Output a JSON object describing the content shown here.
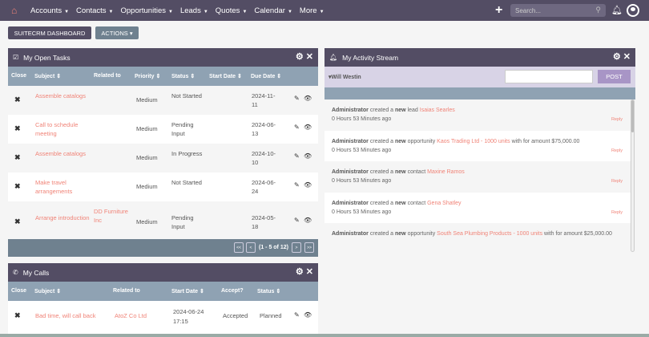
{
  "nav": {
    "items": [
      "Accounts",
      "Contacts",
      "Opportunities",
      "Leads",
      "Quotes",
      "Calendar",
      "More"
    ],
    "search_placeholder": "Search..."
  },
  "buttons": {
    "dashboard": "SUITECRM DASHBOARD",
    "actions": "ACTIONS ▾"
  },
  "tasks": {
    "title": "My Open Tasks",
    "columns": [
      "Close",
      "Subject ⇕",
      "Related to",
      "Priority ⇕",
      "Status ⇕",
      "Start Date ⇕",
      "Due Date ⇕"
    ],
    "rows": [
      {
        "subject": "Assemble catalogs",
        "related": "",
        "priority": "Medium",
        "status": "Not Started",
        "due": "2024-11-11"
      },
      {
        "subject": "Call to schedule meeting",
        "related": "",
        "priority": "Medium",
        "status": "Pending Input",
        "due": "2024-06-13"
      },
      {
        "subject": "Assemble catalogs",
        "related": "",
        "priority": "Medium",
        "status": "In Progress",
        "due": "2024-10-10"
      },
      {
        "subject": "Make travel arrangements",
        "related": "",
        "priority": "Medium",
        "status": "Not Started",
        "due": "2024-06-24"
      },
      {
        "subject": "Arrange introduction",
        "related": "DD Furniture Inc",
        "priority": "Medium",
        "status": "Pending Input",
        "due": "2024-05-18"
      }
    ],
    "pagination": "(1 - 5 of 12)"
  },
  "calls": {
    "title": "My Calls",
    "columns": [
      "Close",
      "Subject ⇕",
      "Related to",
      "Start Date ⇕",
      "Accept?",
      "Status ⇕"
    ],
    "rows": [
      {
        "subject": "Bad time, will call back",
        "related": "AtoZ Co Ltd",
        "start": "2024-06-24 17:15",
        "accept": "Accepted",
        "status": "Planned"
      }
    ]
  },
  "activity": {
    "title": "My Activity Stream",
    "user": "Will Westin",
    "post": "POST",
    "items": [
      {
        "actor": "Administrator",
        "pre": "created a",
        "new": "new",
        "type": "lead",
        "link": "Isaias Searles",
        "post": "",
        "time": "0 Hours 53 Minutes ago",
        "reply": "Reply"
      },
      {
        "actor": "Administrator",
        "pre": "created a",
        "new": "new",
        "type": "opportunity",
        "link": "Kaos Trading Ltd - 1000 units",
        "post": "with for amount $75,000.00",
        "time": "0 Hours 53 Minutes ago",
        "reply": "Reply"
      },
      {
        "actor": "Administrator",
        "pre": "created a",
        "new": "new",
        "type": "contact",
        "link": "Maxine Ramos",
        "post": "",
        "time": "0 Hours 53 Minutes ago",
        "reply": "Reply"
      },
      {
        "actor": "Administrator",
        "pre": "created a",
        "new": "new",
        "type": "contact",
        "link": "Gena Shatley",
        "post": "",
        "time": "0 Hours 53 Minutes ago",
        "reply": "Reply"
      },
      {
        "actor": "Administrator",
        "pre": "created a",
        "new": "new",
        "type": "opportunity",
        "link": "South Sea Plumbing Products - 1000 units",
        "post": "with for amount $25,000.00",
        "time": "",
        "reply": ""
      }
    ]
  },
  "colors": {
    "nav": "#534d64",
    "accent": "#f08377",
    "column_header": "#8fa2b3"
  }
}
